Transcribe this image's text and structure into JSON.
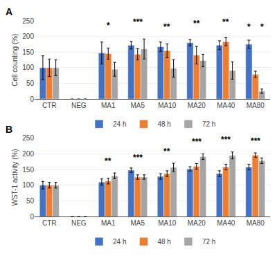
{
  "chart_data": [
    {
      "type": "bar",
      "title": "A",
      "ylabel": "Cell counting (%)",
      "categories": [
        "CTR",
        "NEG",
        "MA1",
        "MA5",
        "MA10",
        "MA20",
        "MA40",
        "MA80"
      ],
      "series": [
        {
          "name": "24 h",
          "color": "#4472C4",
          "values": [
            100,
            0,
            147,
            172,
            167,
            180,
            172,
            175
          ],
          "errors": [
            38,
            0,
            35,
            12,
            15,
            10,
            14,
            13
          ]
        },
        {
          "name": "48 h",
          "color": "#ED7D31",
          "values": [
            100,
            0,
            145,
            143,
            154,
            140,
            183,
            79
          ],
          "errors": [
            28,
            0,
            18,
            18,
            22,
            28,
            13,
            10
          ]
        },
        {
          "name": "72 h",
          "color": "#A5A5A5",
          "values": [
            100,
            0,
            95,
            160,
            98,
            123,
            91,
            25
          ],
          "errors": [
            25,
            0,
            22,
            32,
            28,
            20,
            28,
            7
          ]
        }
      ],
      "annotations": [
        {
          "text": "*",
          "x": "MA1",
          "y": 215
        },
        {
          "text": "***",
          "x": "MA5",
          "y": 225
        },
        {
          "text": "**",
          "x": "MA10",
          "y": 210
        },
        {
          "text": "**",
          "x": "MA20",
          "y": 222
        },
        {
          "text": "**",
          "x": "MA40",
          "y": 225
        },
        {
          "text": "*",
          "x": "MA80",
          "series": "24 h",
          "y": 210
        },
        {
          "text": "*",
          "x": "MA80",
          "series": "72 h",
          "y": 210
        }
      ],
      "ylim": [
        0,
        250
      ],
      "yticks": [
        0,
        50,
        100,
        150,
        200,
        250
      ],
      "grid": true,
      "legend": "bottom"
    },
    {
      "type": "bar",
      "title": "B",
      "ylabel": "WST-1 activity (%)",
      "categories": [
        "CTR",
        "NEG",
        "MA1",
        "MA5",
        "MA10",
        "MA20",
        "MA40",
        "MA80"
      ],
      "series": [
        {
          "name": "24 h",
          "color": "#4472C4",
          "values": [
            100,
            0,
            110,
            148,
            128,
            152,
            137,
            158
          ],
          "errors": [
            12,
            0,
            10,
            7,
            9,
            7,
            9,
            9
          ]
        },
        {
          "name": "48 h",
          "color": "#ED7D31",
          "values": [
            100,
            0,
            113,
            126,
            137,
            160,
            158,
            196
          ],
          "errors": [
            9,
            0,
            9,
            7,
            9,
            9,
            9,
            7
          ]
        },
        {
          "name": "72 h",
          "color": "#A5A5A5",
          "values": [
            100,
            0,
            130,
            126,
            157,
            191,
            195,
            178
          ],
          "errors": [
            9,
            0,
            9,
            7,
            13,
            9,
            11,
            9
          ]
        }
      ],
      "annotations": [
        {
          "text": "**",
          "x": "MA1",
          "y": 157
        },
        {
          "text": "***",
          "x": "MA5",
          "y": 167
        },
        {
          "text": "**",
          "x": "MA10",
          "y": 188
        },
        {
          "text": "***",
          "x": "MA20",
          "y": 218
        },
        {
          "text": "***",
          "x": "MA40",
          "y": 225
        },
        {
          "text": "***",
          "x": "MA80",
          "y": 220
        }
      ],
      "ylim": [
        0,
        250
      ],
      "yticks": [
        0,
        50,
        100,
        150,
        200,
        250
      ],
      "grid": true,
      "legend": "bottom"
    }
  ]
}
